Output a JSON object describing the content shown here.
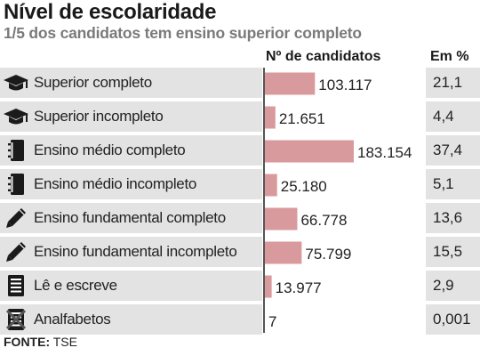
{
  "title": "Nível de escolaridade",
  "subtitle": "1/5 dos candidatos tem ensino superior completo",
  "headers": {
    "count": "Nº de candidatos",
    "pct": "Em %"
  },
  "source": {
    "label": "FONTE:",
    "value": "TSE"
  },
  "colors": {
    "bar": "#d99a9e",
    "row_shade": "#e3e3e3",
    "axis": "#555555"
  },
  "rows": [
    {
      "label": "Superior completo",
      "count": "103.117",
      "pct": "21,1",
      "icon": "graduation-cap-icon"
    },
    {
      "label": "Superior incompleto",
      "count": "21.651",
      "pct": "4,4",
      "icon": "graduation-cap-icon"
    },
    {
      "label": "Ensino médio completo",
      "count": "183.154",
      "pct": "37,4",
      "icon": "notebook-icon"
    },
    {
      "label": "Ensino médio incompleto",
      "count": "25.180",
      "pct": "5,1",
      "icon": "notebook-icon"
    },
    {
      "label": "Ensino fundamental completo",
      "count": "66.778",
      "pct": "13,6",
      "icon": "pencil-icon"
    },
    {
      "label": "Ensino fundamental incompleto",
      "count": "75.799",
      "pct": "15,5",
      "icon": "pencil-icon"
    },
    {
      "label": "Lê e escreve",
      "count": "13.977",
      "pct": "2,9",
      "icon": "text-lines-icon"
    },
    {
      "label": "Analfabetos",
      "count": "7",
      "pct": "0,001",
      "icon": "crossed-text-icon"
    }
  ],
  "chart_data": {
    "type": "bar",
    "orientation": "horizontal",
    "title": "Nível de escolaridade",
    "subtitle": "1/5 dos candidatos tem ensino superior completo",
    "categories": [
      "Superior completo",
      "Superior incompleto",
      "Ensino médio completo",
      "Ensino médio incompleto",
      "Ensino fundamental completo",
      "Ensino fundamental incompleto",
      "Lê e escreve",
      "Analfabetos"
    ],
    "series": [
      {
        "name": "Nº de candidatos",
        "values": [
          103117,
          21651,
          183154,
          25180,
          66778,
          75799,
          13977,
          7
        ]
      },
      {
        "name": "Em %",
        "values": [
          21.1,
          4.4,
          37.4,
          5.1,
          13.6,
          15.5,
          2.9,
          0.001
        ]
      }
    ],
    "xlim": [
      0,
      183154
    ],
    "grid": false,
    "legend": "none"
  }
}
